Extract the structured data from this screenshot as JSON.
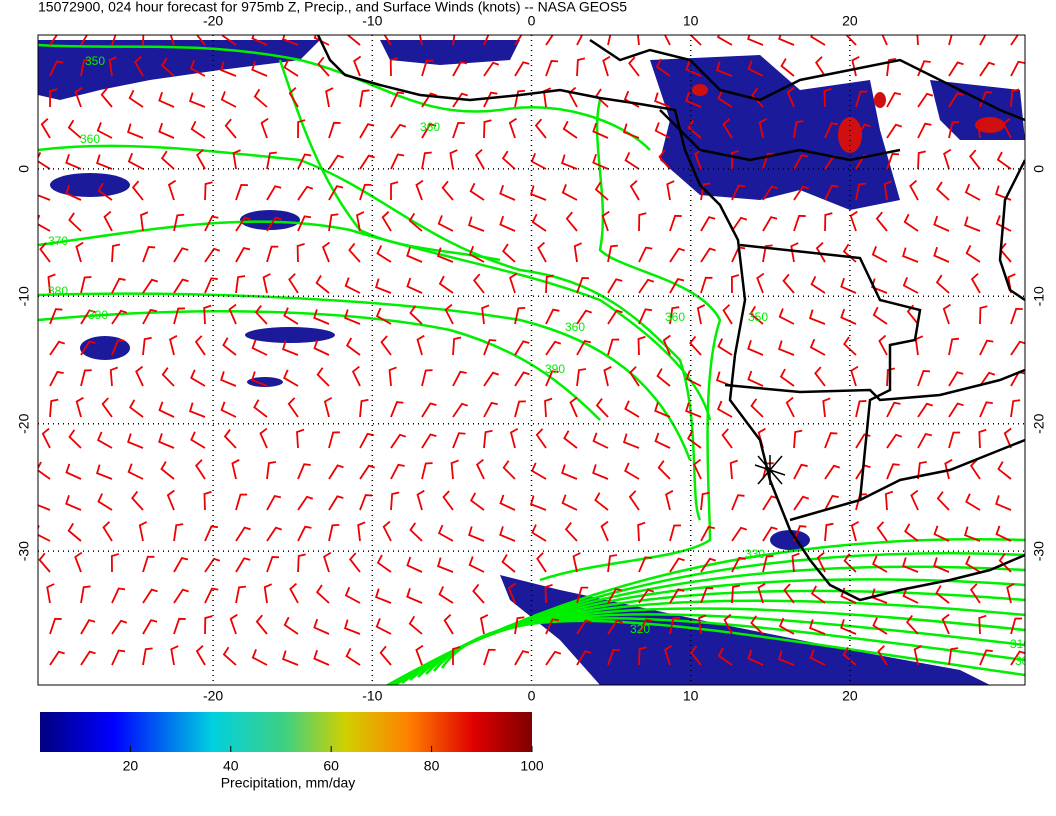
{
  "title": "15072900, 024 hour forecast for 975mb Z, Precip., and Surface Winds (knots) -- NASA GEOS5",
  "map": {
    "lonlim": [
      -31,
      31
    ],
    "latlim": [
      -40.5,
      10.5
    ],
    "lonticks": [
      -20,
      -10,
      0,
      10,
      20
    ],
    "latticks": [
      0,
      -10,
      -20,
      -30
    ],
    "grid": true,
    "contour_color": "#00ee00",
    "barb_color": "#ee0000",
    "coast_color": "#000000",
    "contour_labels": [
      350,
      360,
      360,
      370,
      380,
      390,
      360,
      390,
      360,
      350,
      330,
      320,
      310,
      300
    ]
  },
  "colorbar": {
    "label": "Precipitation, mm/day",
    "lim": [
      2,
      100
    ],
    "ticks": [
      20,
      40,
      60,
      80,
      100
    ]
  }
}
